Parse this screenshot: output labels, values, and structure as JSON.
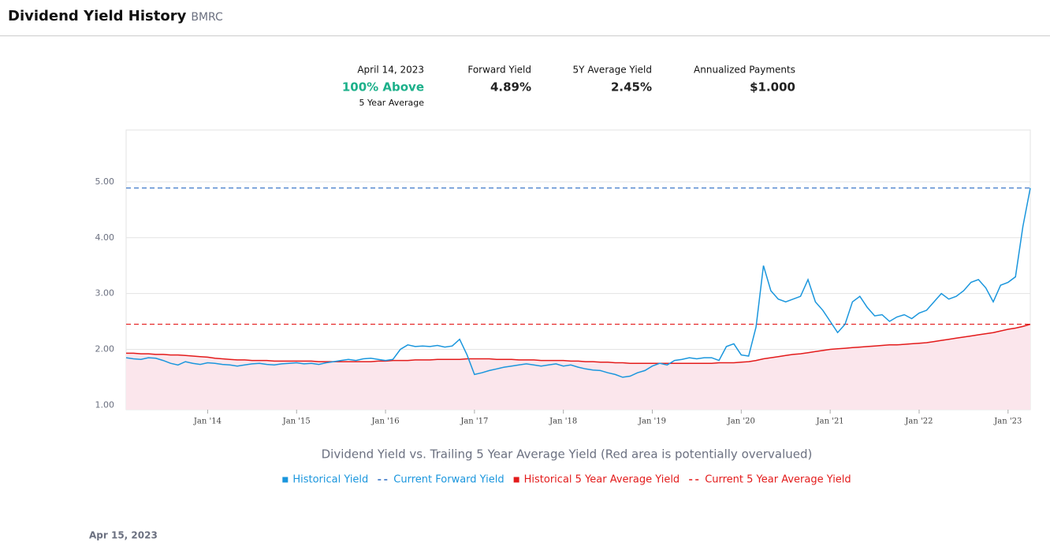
{
  "header": {
    "title": "Dividend Yield History",
    "ticker": "BMRC"
  },
  "stats": [
    {
      "label": "April 14, 2023",
      "value": "100% Above",
      "note": "5 Year Average"
    },
    {
      "label": "Forward Yield",
      "value": "4.89%"
    },
    {
      "label": "5Y Average Yield",
      "value": "2.45%"
    },
    {
      "label": "Annualized Payments",
      "value": "$1.000"
    }
  ],
  "chart_data": {
    "type": "line",
    "subtitle": "Dividend Yield vs. Trailing 5 Year Average Yield (Red area is potentially overvalued)",
    "x": [
      "2013-02",
      "2013-03",
      "2013-04",
      "2013-05",
      "2013-06",
      "2013-07",
      "2013-08",
      "2013-09",
      "2013-10",
      "2013-11",
      "2013-12",
      "2014-01",
      "2014-02",
      "2014-03",
      "2014-04",
      "2014-05",
      "2014-06",
      "2014-07",
      "2014-08",
      "2014-09",
      "2014-10",
      "2014-11",
      "2014-12",
      "2015-01",
      "2015-02",
      "2015-03",
      "2015-04",
      "2015-05",
      "2015-06",
      "2015-07",
      "2015-08",
      "2015-09",
      "2015-10",
      "2015-11",
      "2015-12",
      "2016-01",
      "2016-02",
      "2016-03",
      "2016-04",
      "2016-05",
      "2016-06",
      "2016-07",
      "2016-08",
      "2016-09",
      "2016-10",
      "2016-11",
      "2016-12",
      "2017-01",
      "2017-02",
      "2017-03",
      "2017-04",
      "2017-05",
      "2017-06",
      "2017-07",
      "2017-08",
      "2017-09",
      "2017-10",
      "2017-11",
      "2017-12",
      "2018-01",
      "2018-02",
      "2018-03",
      "2018-04",
      "2018-05",
      "2018-06",
      "2018-07",
      "2018-08",
      "2018-09",
      "2018-10",
      "2018-11",
      "2018-12",
      "2019-01",
      "2019-02",
      "2019-03",
      "2019-04",
      "2019-05",
      "2019-06",
      "2019-07",
      "2019-08",
      "2019-09",
      "2019-10",
      "2019-11",
      "2019-12",
      "2020-01",
      "2020-02",
      "2020-03",
      "2020-04",
      "2020-05",
      "2020-06",
      "2020-07",
      "2020-08",
      "2020-09",
      "2020-10",
      "2020-11",
      "2020-12",
      "2021-01",
      "2021-02",
      "2021-03",
      "2021-04",
      "2021-05",
      "2021-06",
      "2021-07",
      "2021-08",
      "2021-09",
      "2021-10",
      "2021-11",
      "2021-12",
      "2022-01",
      "2022-02",
      "2022-03",
      "2022-04",
      "2022-05",
      "2022-06",
      "2022-07",
      "2022-08",
      "2022-09",
      "2022-10",
      "2022-11",
      "2022-12",
      "2023-01",
      "2023-02",
      "2023-03",
      "2023-04"
    ],
    "series": [
      {
        "name": "Historical Yield",
        "color": "#1a96dd",
        "values": [
          1.85,
          1.83,
          1.82,
          1.85,
          1.84,
          1.8,
          1.75,
          1.72,
          1.78,
          1.75,
          1.73,
          1.76,
          1.75,
          1.73,
          1.72,
          1.7,
          1.72,
          1.74,
          1.75,
          1.73,
          1.72,
          1.74,
          1.75,
          1.76,
          1.74,
          1.75,
          1.73,
          1.76,
          1.78,
          1.8,
          1.82,
          1.8,
          1.83,
          1.84,
          1.82,
          1.8,
          1.82,
          2.0,
          2.08,
          2.05,
          2.06,
          2.05,
          2.07,
          2.04,
          2.06,
          2.18,
          1.9,
          1.55,
          1.58,
          1.62,
          1.65,
          1.68,
          1.7,
          1.72,
          1.74,
          1.72,
          1.7,
          1.72,
          1.74,
          1.7,
          1.72,
          1.68,
          1.65,
          1.63,
          1.62,
          1.58,
          1.55,
          1.5,
          1.52,
          1.58,
          1.62,
          1.7,
          1.75,
          1.72,
          1.8,
          1.82,
          1.85,
          1.83,
          1.85,
          1.85,
          1.8,
          2.05,
          2.1,
          1.9,
          1.88,
          2.4,
          3.5,
          3.05,
          2.9,
          2.85,
          2.9,
          2.95,
          3.25,
          2.85,
          2.7,
          2.5,
          2.3,
          2.45,
          2.85,
          2.95,
          2.75,
          2.6,
          2.62,
          2.5,
          2.58,
          2.62,
          2.55,
          2.65,
          2.7,
          2.85,
          3.0,
          2.9,
          2.95,
          3.05,
          3.2,
          3.25,
          3.1,
          2.85,
          3.15,
          3.2,
          3.3,
          4.2,
          4.89
        ]
      },
      {
        "name": "Current Forward Yield",
        "color": "#2b6cc4",
        "value": 4.89,
        "dashed": true
      },
      {
        "name": "Historical 5 Year Average Yield",
        "color": "#e31b1b",
        "fill": "#fbe6ec",
        "values": [
          1.93,
          1.93,
          1.92,
          1.92,
          1.91,
          1.91,
          1.9,
          1.9,
          1.89,
          1.88,
          1.87,
          1.86,
          1.84,
          1.83,
          1.82,
          1.81,
          1.81,
          1.8,
          1.8,
          1.8,
          1.79,
          1.79,
          1.79,
          1.79,
          1.79,
          1.79,
          1.78,
          1.78,
          1.78,
          1.78,
          1.78,
          1.78,
          1.78,
          1.78,
          1.79,
          1.79,
          1.8,
          1.8,
          1.8,
          1.81,
          1.81,
          1.81,
          1.82,
          1.82,
          1.82,
          1.82,
          1.83,
          1.83,
          1.83,
          1.83,
          1.82,
          1.82,
          1.82,
          1.81,
          1.81,
          1.81,
          1.8,
          1.8,
          1.8,
          1.8,
          1.79,
          1.79,
          1.78,
          1.78,
          1.77,
          1.77,
          1.76,
          1.76,
          1.75,
          1.75,
          1.75,
          1.75,
          1.75,
          1.75,
          1.75,
          1.75,
          1.75,
          1.75,
          1.75,
          1.75,
          1.76,
          1.76,
          1.76,
          1.77,
          1.78,
          1.8,
          1.83,
          1.85,
          1.87,
          1.89,
          1.91,
          1.92,
          1.94,
          1.96,
          1.98,
          2.0,
          2.01,
          2.02,
          2.03,
          2.04,
          2.05,
          2.06,
          2.07,
          2.08,
          2.08,
          2.09,
          2.1,
          2.11,
          2.12,
          2.14,
          2.16,
          2.18,
          2.2,
          2.22,
          2.24,
          2.26,
          2.28,
          2.3,
          2.33,
          2.36,
          2.38,
          2.41,
          2.45
        ]
      },
      {
        "name": "Current 5 Year Average Yield",
        "color": "#e31b1b",
        "value": 2.45,
        "dashed": true
      }
    ],
    "xlim": [
      "2013-02",
      "2023-04"
    ],
    "xticks": [
      {
        "value": "2014-01",
        "label": "Jan '14"
      },
      {
        "value": "2015-01",
        "label": "Jan '15"
      },
      {
        "value": "2016-01",
        "label": "Jan '16"
      },
      {
        "value": "2017-01",
        "label": "Jan '17"
      },
      {
        "value": "2018-01",
        "label": "Jan '18"
      },
      {
        "value": "2019-01",
        "label": "Jan '19"
      },
      {
        "value": "2020-01",
        "label": "Jan '20"
      },
      {
        "value": "2021-01",
        "label": "Jan '21"
      },
      {
        "value": "2022-01",
        "label": "Jan '22"
      },
      {
        "value": "2023-01",
        "label": "Jan '23"
      }
    ],
    "ylim": [
      0.92,
      5.93
    ],
    "yticks": [
      {
        "value": 1,
        "label": "1.00"
      },
      {
        "value": 2,
        "label": "2.00"
      },
      {
        "value": 3,
        "label": "3.00"
      },
      {
        "value": 4,
        "label": "4.00"
      },
      {
        "value": 5,
        "label": "5.00"
      }
    ],
    "grid": true
  },
  "footer": {
    "date": "Apr 15, 2023"
  }
}
